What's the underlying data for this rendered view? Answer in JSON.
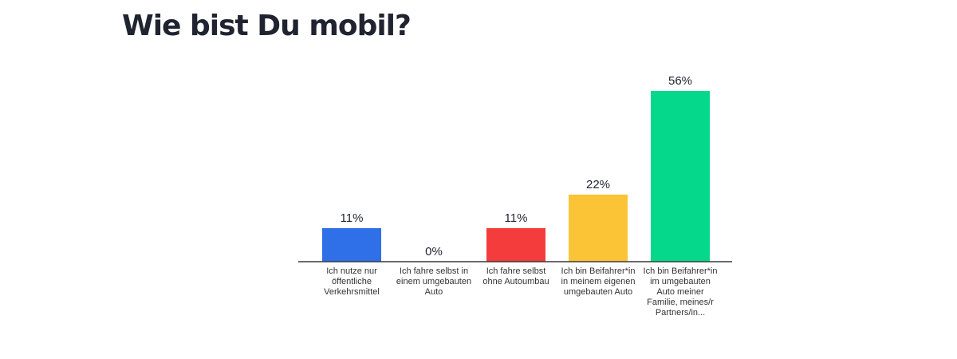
{
  "page": {
    "title": "Wie bist Du mobil?"
  },
  "chart_data": {
    "type": "bar",
    "title": "Wie bist Du mobil?",
    "categories": [
      "Ich nutze nur öffentliche Verkehrsmittel",
      "Ich fahre selbst in einem umgebauten Auto",
      "Ich fahre selbst ohne Autoumbau",
      "Ich bin Beifahrer*in in meinem eigenen umgebauten Auto",
      "Ich bin Beifahrer*in im umgebauten Auto meiner Familie, meines/r Partners/in..."
    ],
    "values": [
      11,
      0,
      11,
      22,
      56
    ],
    "value_labels": [
      "11%",
      "0%",
      "11%",
      "22%",
      "56%"
    ],
    "unit": "%",
    "colors": [
      "#2f6fe8",
      "#cccccc",
      "#f43c3c",
      "#fbc437",
      "#05d88b"
    ],
    "ylim": [
      0,
      56
    ],
    "grid": false,
    "legend": "none",
    "xlabel": "",
    "ylabel": ""
  }
}
